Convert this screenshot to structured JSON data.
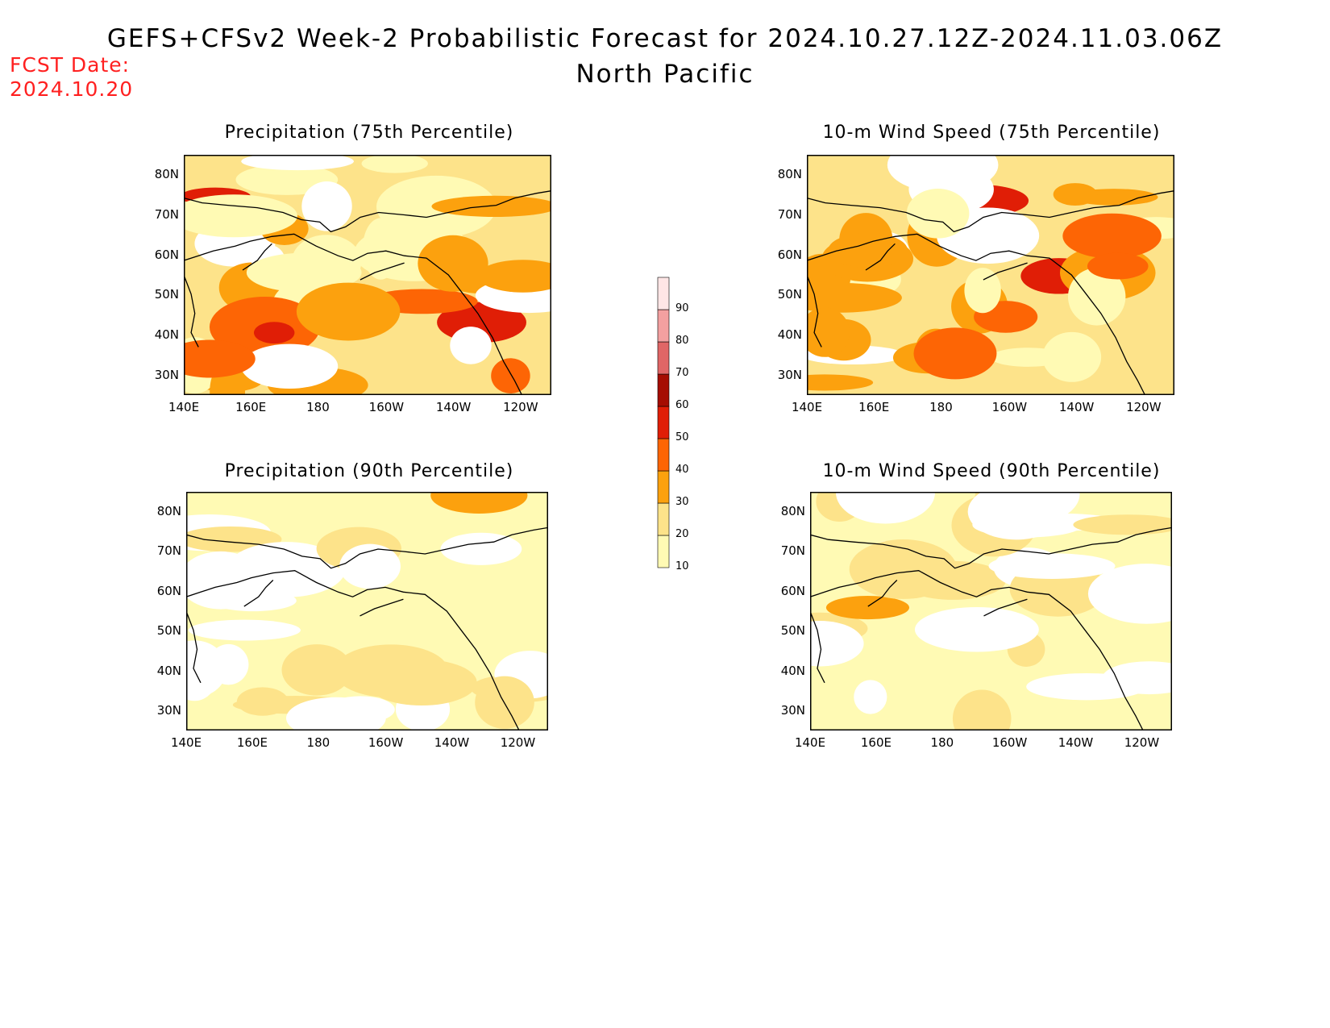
{
  "header": {
    "title": "GEFS+CFSv2 Week-2 Probabilistic Forecast for 2024.10.27.12Z-2024.11.03.06Z",
    "subtitle": "North Pacific",
    "fcst_label": "FCST Date:",
    "fcst_date": "2024.10.20"
  },
  "panels": [
    {
      "id": "precip75",
      "title": "Precipitation (75th Percentile)",
      "intensity": 0.8
    },
    {
      "id": "wind75",
      "title": "10-m Wind Speed (75th Percentile)",
      "intensity": 0.85
    },
    {
      "id": "precip90",
      "title": "Precipitation (90th Percentile)",
      "intensity": 0.3
    },
    {
      "id": "wind90",
      "title": "10-m Wind Speed (90th Percentile)",
      "intensity": 0.3
    }
  ],
  "axes": {
    "lon_labels": [
      "140E",
      "160E",
      "180",
      "160W",
      "140W",
      "120W"
    ],
    "lat_labels": [
      "80N",
      "70N",
      "60N",
      "50N",
      "40N",
      "30N"
    ]
  },
  "colorbar": {
    "levels": [
      "10",
      "20",
      "30",
      "40",
      "50",
      "60",
      "70",
      "80",
      "90"
    ],
    "colors": [
      "#fffab4",
      "#fde38a",
      "#fca10e",
      "#fd6505",
      "#e01e06",
      "#a50d02",
      "#e06666",
      "#f3a0a0",
      "#ffe6e6"
    ]
  }
}
